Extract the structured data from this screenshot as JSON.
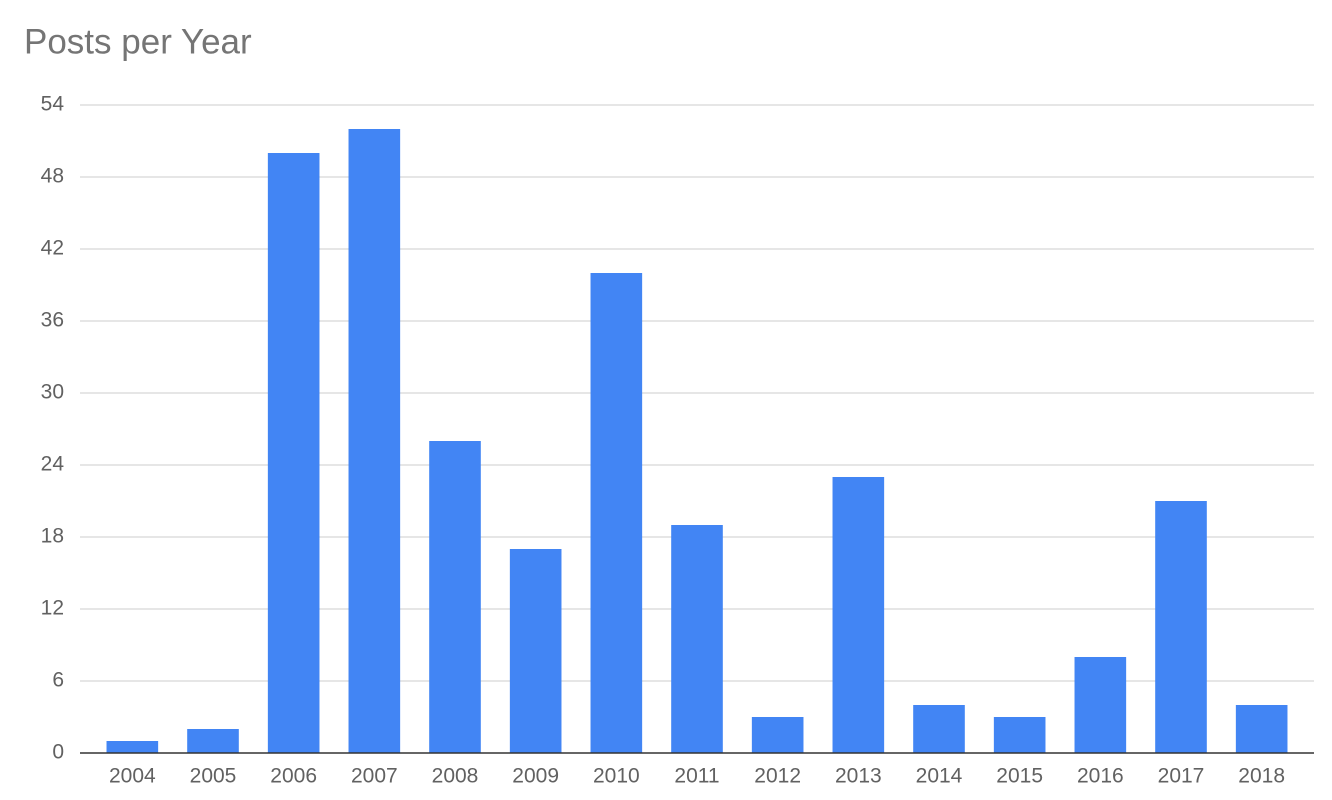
{
  "chart_data": {
    "type": "bar",
    "title": "Posts per Year",
    "categories": [
      "2004",
      "2005",
      "2006",
      "2007",
      "2008",
      "2009",
      "2010",
      "2011",
      "2012",
      "2013",
      "2014",
      "2015",
      "2016",
      "2017",
      "2018"
    ],
    "values": [
      1,
      2,
      50,
      52,
      26,
      17,
      40,
      19,
      3,
      23,
      4,
      3,
      8,
      21,
      4
    ],
    "color": "#4285f4",
    "ylim": [
      0,
      54
    ],
    "yticks": [
      0,
      6,
      12,
      18,
      24,
      30,
      36,
      42,
      48,
      54
    ],
    "grid": true
  }
}
